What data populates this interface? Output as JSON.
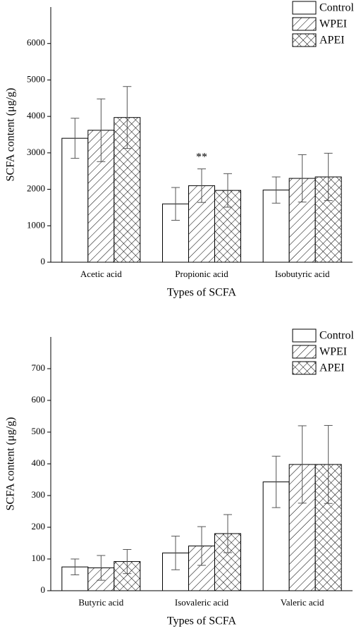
{
  "chart_data": [
    {
      "type": "bar",
      "xlabel": "Types of SCFA",
      "ylabel": "SCFA content (μg/g)",
      "categories": [
        "Acetic acid",
        "Propionic acid",
        "Isobutyric acid"
      ],
      "series": [
        {
          "name": "Control",
          "color": "#ffffff",
          "hatch": "none",
          "values": [
            3400,
            1600,
            1980
          ],
          "errors": [
            550,
            450,
            360
          ]
        },
        {
          "name": "WPEI",
          "color": "#ffffff",
          "hatch": "diagonal",
          "values": [
            3620,
            2100,
            2300
          ],
          "errors": [
            860,
            460,
            650
          ]
        },
        {
          "name": "APEI",
          "color": "#ffffff",
          "hatch": "cross",
          "values": [
            3970,
            1970,
            2340
          ],
          "errors": [
            850,
            460,
            650
          ]
        }
      ],
      "annotations": [
        {
          "text": "**"
        }
      ],
      "ylim": [
        0,
        7000
      ],
      "yticks": [
        0,
        1000,
        2000,
        3000,
        4000,
        5000,
        6000
      ],
      "legend": "upper right"
    },
    {
      "type": "bar",
      "xlabel": "Types of SCFA",
      "ylabel": "SCFA content (μg/g)",
      "categories": [
        "Butyric acid",
        "Isovaleric acid",
        "Valeric acid"
      ],
      "series": [
        {
          "name": "Control",
          "color": "#ffffff",
          "hatch": "none",
          "values": [
            75,
            119,
            343
          ],
          "errors": [
            25,
            53,
            81
          ]
        },
        {
          "name": "WPEI",
          "color": "#ffffff",
          "hatch": "diagonal",
          "values": [
            72,
            141,
            398
          ],
          "errors": [
            39,
            61,
            122
          ]
        },
        {
          "name": "APEI",
          "color": "#ffffff",
          "hatch": "cross",
          "values": [
            92,
            180,
            398
          ],
          "errors": [
            38,
            60,
            123
          ]
        }
      ],
      "ylim": [
        0,
        800
      ],
      "yticks": [
        0,
        100,
        200,
        300,
        400,
        500,
        600,
        700
      ],
      "legend": "upper right"
    }
  ]
}
